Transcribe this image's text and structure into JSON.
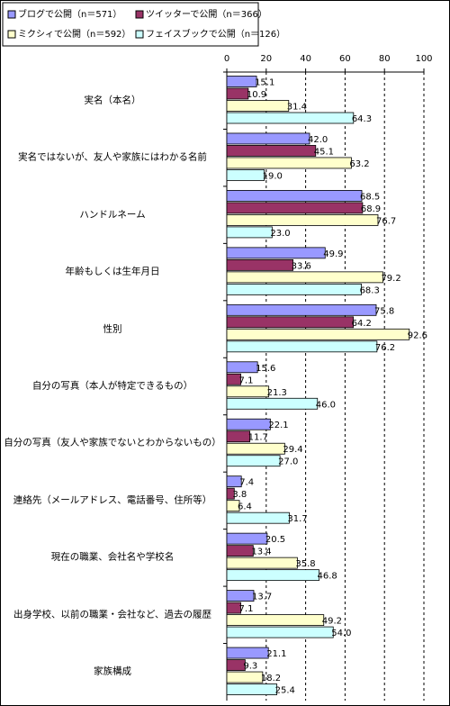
{
  "chart_data": {
    "type": "bar",
    "orientation": "horizontal",
    "categories": [
      "実名（本名）",
      "実名ではないが、友人や家族にはわかる名前",
      "ハンドルネーム",
      "年齢もしくは生年月日",
      "性別",
      "自分の写真（本人が特定できるもの）",
      "自分の写真（友人や家族でないとわからないもの）",
      "連絡先（メールアドレス、電話番号、住所等）",
      "現在の職業、会社名や学校名",
      "出身学校、以前の職業・会社など、過去の履歴",
      "家族構成"
    ],
    "series": [
      {
        "name": "ブログで公開（n＝571）",
        "color": "#9999ff",
        "values": [
          15.1,
          42.0,
          68.5,
          49.9,
          75.8,
          15.6,
          22.1,
          7.4,
          20.5,
          13.7,
          21.1
        ],
        "value_labels": [
          "15.1",
          "42.0",
          "68.5",
          "49.9",
          "75.8",
          "15.6",
          "22.1",
          "7.4",
          "20.5",
          "13.7",
          "21.1"
        ]
      },
      {
        "name": "ツイッターで公開（n＝366）",
        "color": "#993366",
        "values": [
          10.9,
          45.1,
          68.9,
          33.6,
          64.2,
          7.1,
          11.7,
          3.8,
          13.4,
          7.1,
          9.3
        ],
        "value_labels": [
          "10.9",
          "45.1",
          "68.9",
          "33.6",
          "64.2",
          "7.1",
          "11.7",
          "3.8",
          "13.4",
          "7.1",
          "9.3"
        ]
      },
      {
        "name": "ミクシィで公開（n＝592）",
        "color": "#ffffcc",
        "values": [
          31.4,
          63.2,
          76.7,
          79.2,
          92.6,
          21.3,
          29.4,
          6.4,
          35.8,
          49.2,
          18.2
        ],
        "value_labels": [
          "31.4",
          "63.2",
          "76.7",
          "79.2",
          "92.6",
          "21.3",
          "29.4",
          "6.4",
          "35.8",
          "49.2",
          "18.2"
        ]
      },
      {
        "name": "フェイスブックで公開（n＝126）",
        "color": "#ccffff",
        "values": [
          64.3,
          19.0,
          23.0,
          68.3,
          76.2,
          46.0,
          27.0,
          31.7,
          46.8,
          54.0,
          25.4
        ],
        "value_labels": [
          "64.3",
          "19.0",
          "23.0",
          "68.3",
          "76.2",
          "46.0",
          "27.0",
          "31.7",
          "46.8",
          "54.0",
          "25.4"
        ]
      }
    ],
    "xlim": [
      0,
      100
    ],
    "xticks": [
      0,
      20,
      40,
      60,
      80,
      100
    ],
    "grid": true
  }
}
